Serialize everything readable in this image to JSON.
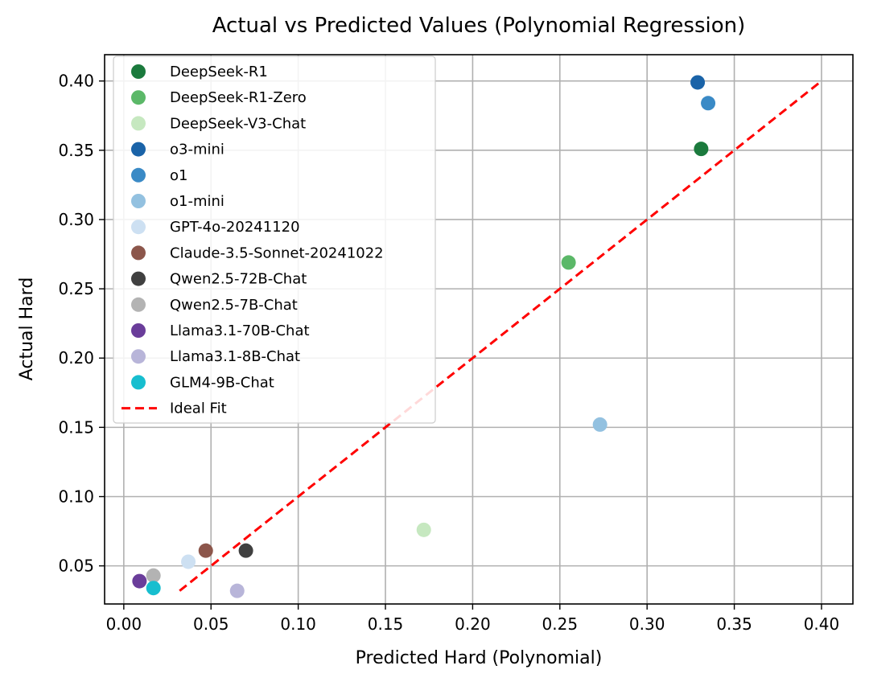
{
  "chart_data": {
    "type": "scatter",
    "title": "Actual vs Predicted Values (Polynomial Regression)",
    "xlabel": "Predicted Hard (Polynomial)",
    "ylabel": "Actual Hard",
    "xlim": [
      -0.011,
      0.418
    ],
    "ylim": [
      0.0225,
      0.419
    ],
    "xticks": [
      0.0,
      0.05,
      0.1,
      0.15,
      0.2,
      0.25,
      0.3,
      0.35,
      0.4
    ],
    "xtick_labels": [
      "0.00",
      "0.05",
      "0.10",
      "0.15",
      "0.20",
      "0.25",
      "0.30",
      "0.35",
      "0.40"
    ],
    "yticks": [
      0.05,
      0.1,
      0.15,
      0.2,
      0.25,
      0.3,
      0.35,
      0.4
    ],
    "ytick_labels": [
      "0.05",
      "0.10",
      "0.15",
      "0.20",
      "0.25",
      "0.30",
      "0.35",
      "0.40"
    ],
    "grid": true,
    "legend_position": "upper-left",
    "series": [
      {
        "name": "DeepSeek-R1",
        "color": "#1b7a3d",
        "x": 0.331,
        "y": 0.351
      },
      {
        "name": "DeepSeek-R1-Zero",
        "color": "#5bb868",
        "x": 0.255,
        "y": 0.269
      },
      {
        "name": "DeepSeek-V3-Chat",
        "color": "#c6e8c0",
        "x": 0.172,
        "y": 0.076
      },
      {
        "name": "o3-mini",
        "color": "#1a63a8",
        "x": 0.329,
        "y": 0.399
      },
      {
        "name": "o1",
        "color": "#3a8ac6",
        "x": 0.335,
        "y": 0.384
      },
      {
        "name": "o1-mini",
        "color": "#93c1e0",
        "x": 0.273,
        "y": 0.152
      },
      {
        "name": "GPT-4o-20241120",
        "color": "#cde0f2",
        "x": 0.037,
        "y": 0.053
      },
      {
        "name": "Claude-3.5-Sonnet-20241022",
        "color": "#8c564b",
        "x": 0.047,
        "y": 0.061
      },
      {
        "name": "Qwen2.5-72B-Chat",
        "color": "#404040",
        "x": 0.07,
        "y": 0.061
      },
      {
        "name": "Qwen2.5-7B-Chat",
        "color": "#b3b3b3",
        "x": 0.017,
        "y": 0.043
      },
      {
        "name": "Llama3.1-70B-Chat",
        "color": "#6a3d9a",
        "x": 0.009,
        "y": 0.039
      },
      {
        "name": "Llama3.1-8B-Chat",
        "color": "#b8b5d9",
        "x": 0.065,
        "y": 0.032
      },
      {
        "name": "GLM4-9B-Chat",
        "color": "#17becf",
        "x": 0.017,
        "y": 0.034
      }
    ],
    "reference_line": {
      "name": "Ideal Fit",
      "color": "#ff0000",
      "style": "dashed",
      "x": [
        0.032,
        0.399
      ],
      "y": [
        0.032,
        0.399
      ]
    }
  }
}
